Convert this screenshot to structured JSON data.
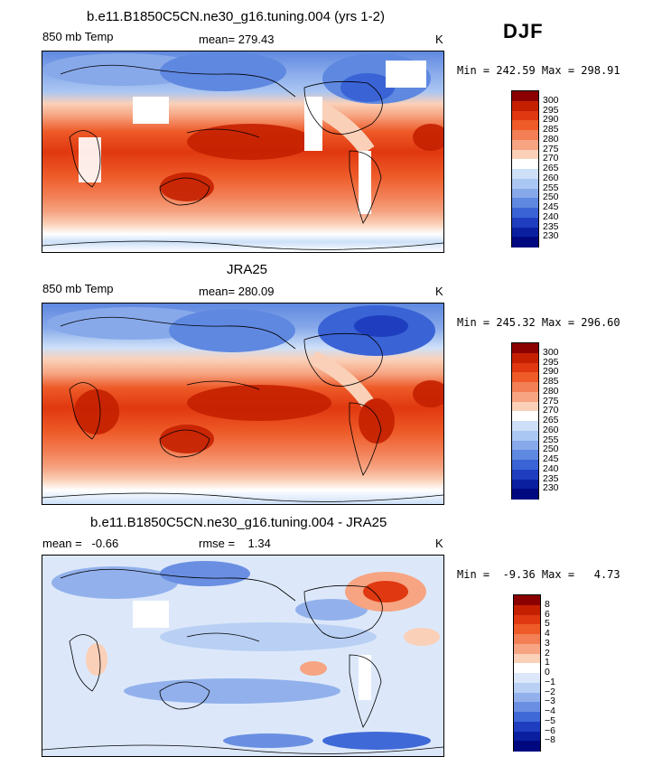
{
  "season": "DJF",
  "panels": [
    {
      "title": "b.e11.B1850C5CN.ne30_g16.tuning.004 (yrs 1-2)",
      "left_label": "850 mb Temp",
      "center_label": "mean= 279.43",
      "units": "K",
      "stats": "Min = 242.59 Max = 298.91",
      "levels": [
        "300",
        "295",
        "290",
        "285",
        "280",
        "275",
        "270",
        "265",
        "260",
        "255",
        "250",
        "245",
        "240",
        "235",
        "230"
      ],
      "colors": [
        "#8b0000",
        "#c42000",
        "#e03810",
        "#ee5a28",
        "#f27f55",
        "#f6a482",
        "#fad0b8",
        "#ffffff",
        "#cde0f8",
        "#aac6f2",
        "#87a9ea",
        "#5f88e0",
        "#3a63d6",
        "#1e3ebf",
        "#0a1fa0",
        "#000880"
      ]
    },
    {
      "title": "JRA25",
      "left_label": "850 mb Temp",
      "center_label": "mean= 280.09",
      "units": "K",
      "stats": "Min = 245.32 Max = 296.60",
      "levels": [
        "300",
        "295",
        "290",
        "285",
        "280",
        "275",
        "270",
        "265",
        "260",
        "255",
        "250",
        "245",
        "240",
        "235",
        "230"
      ],
      "colors": [
        "#8b0000",
        "#c42000",
        "#e03810",
        "#ee5a28",
        "#f27f55",
        "#f6a482",
        "#fad0b8",
        "#ffffff",
        "#cde0f8",
        "#aac6f2",
        "#87a9ea",
        "#5f88e0",
        "#3a63d6",
        "#1e3ebf",
        "#0a1fa0",
        "#000880"
      ]
    },
    {
      "title": "b.e11.B1850C5CN.ne30_g16.tuning.004 - JRA25",
      "left_label": "mean =   -0.66",
      "center_label": "rmse =    1.34",
      "units": "K",
      "stats": "Min =  -9.36 Max =   4.73",
      "levels": [
        "8",
        "6",
        "5",
        "4",
        "3",
        "2",
        "1",
        "0",
        "−1",
        "−2",
        "−3",
        "−4",
        "−5",
        "−6",
        "−8"
      ],
      "colors": [
        "#8b0000",
        "#c42000",
        "#e03810",
        "#ee5a28",
        "#f27f55",
        "#f6a482",
        "#fad0b8",
        "#ffffff",
        "#dce8fa",
        "#b9d0f4",
        "#92b1ec",
        "#6a8fe2",
        "#4069d8",
        "#1e3ebf",
        "#0a1fa0",
        "#000880"
      ]
    }
  ]
}
